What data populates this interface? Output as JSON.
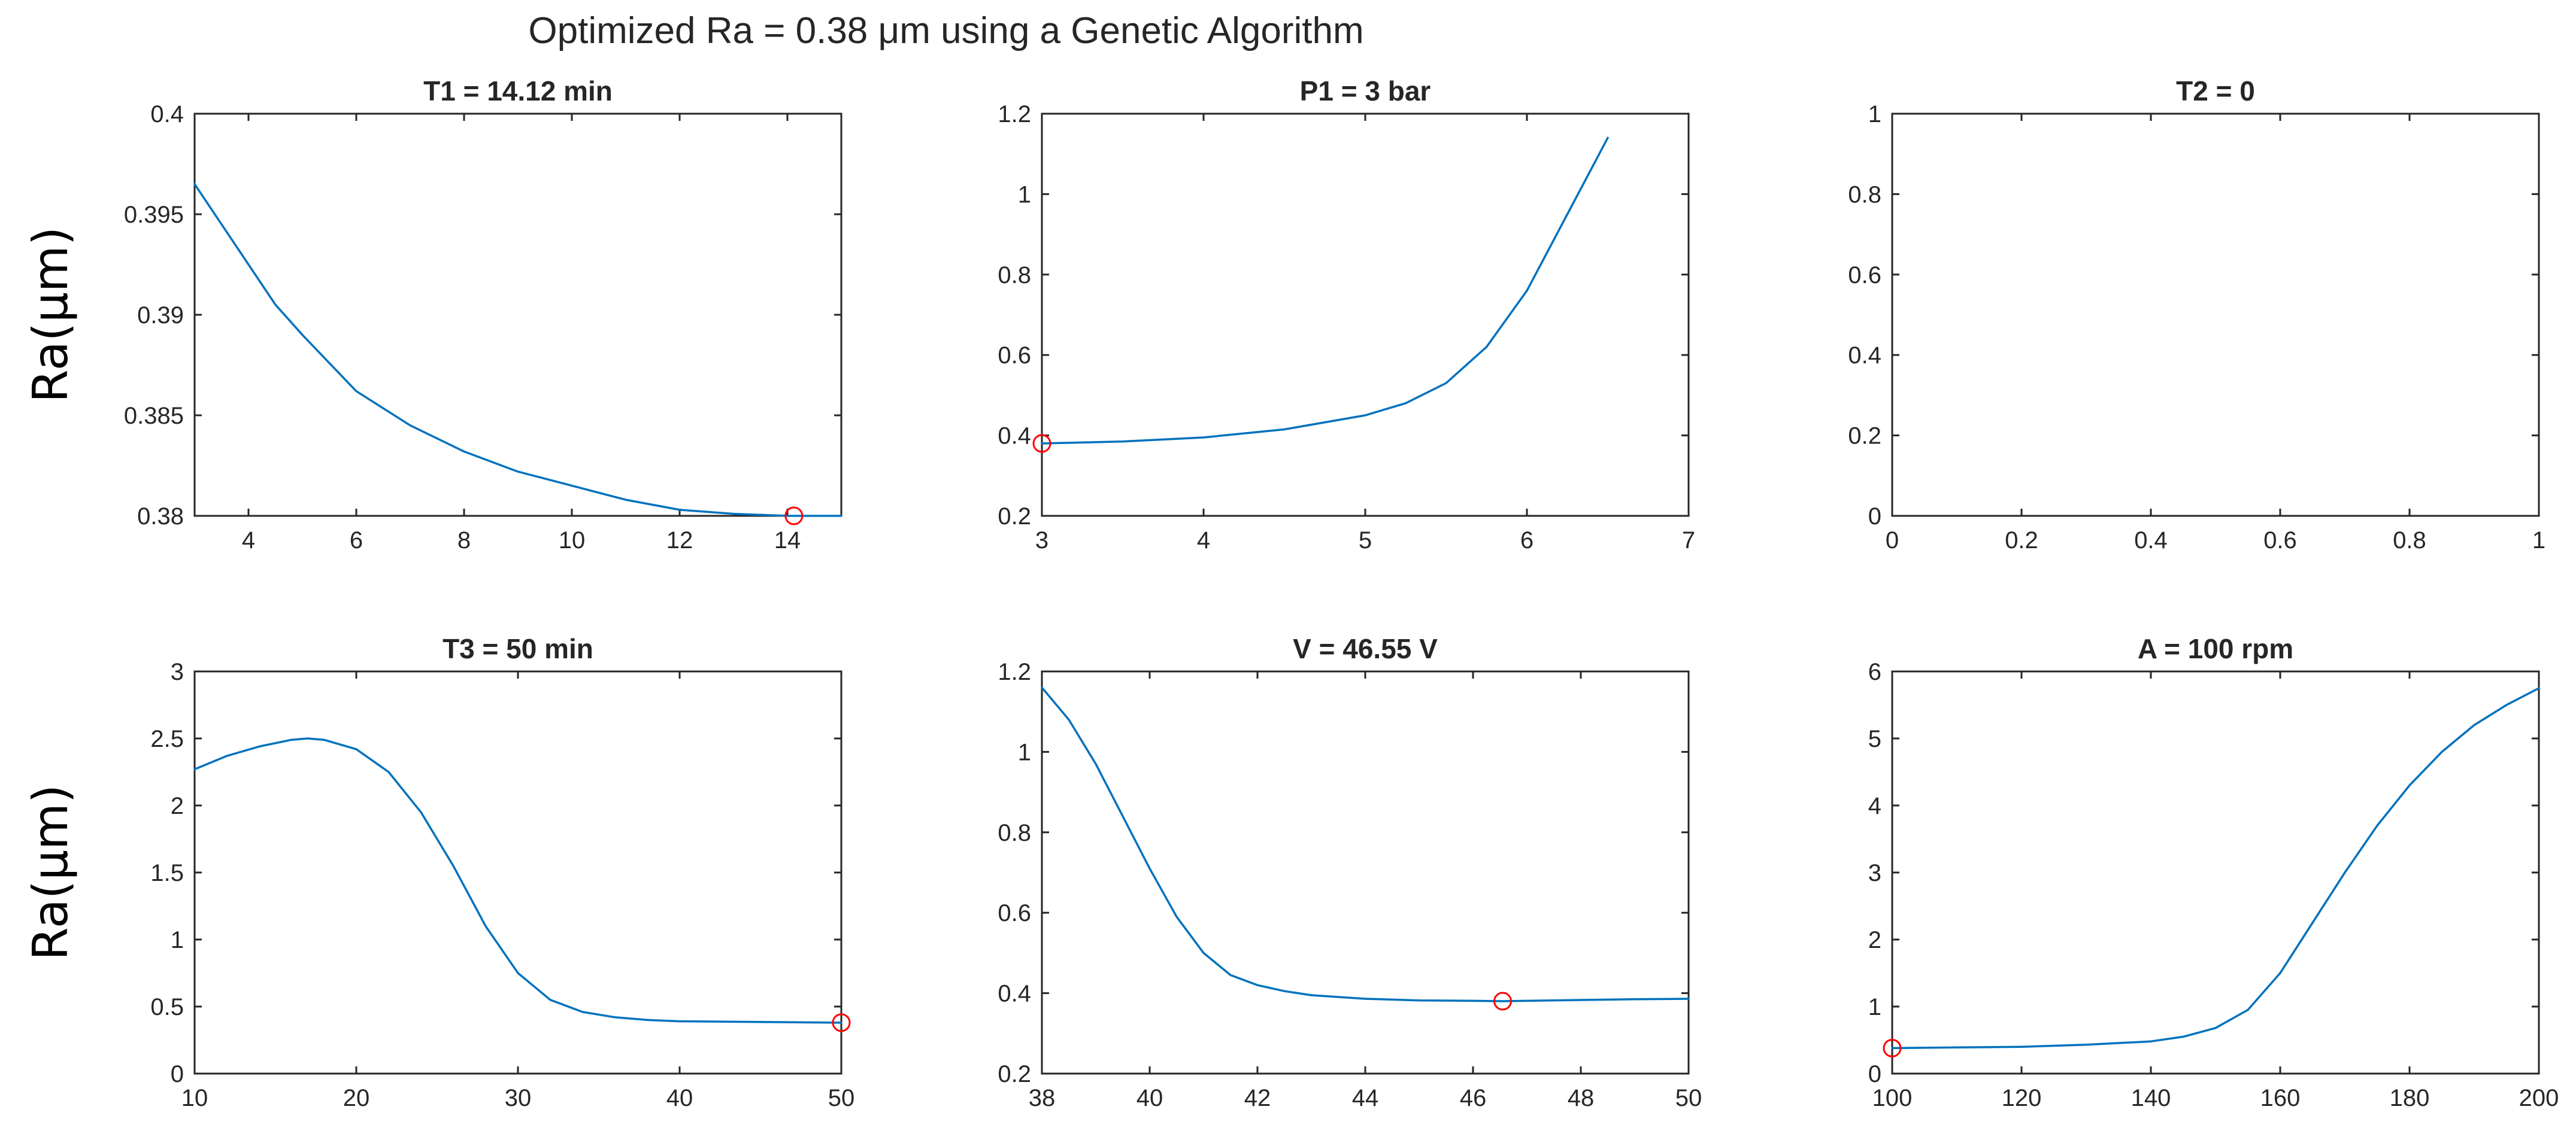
{
  "figure": {
    "title": "Optimized Ra = 0.38 μm using a Genetic Algorithm",
    "row_ylabels": [
      "Ra(μm)",
      "Ra(μm)"
    ]
  },
  "colors": {
    "line": "#0072BD",
    "optimum_marker": "#FF0000",
    "axes": "#262626"
  },
  "chart_data": [
    {
      "type": "line",
      "title": "T1 = 14.12 min",
      "ylabel": "Ra(μm)",
      "xlim": [
        3,
        15
      ],
      "ylim": [
        0.38,
        0.4
      ],
      "xticks": [
        4,
        6,
        8,
        10,
        12,
        14
      ],
      "xtick_labels": [
        "4",
        "6",
        "8",
        "10",
        "12",
        "14"
      ],
      "yticks": [
        0.38,
        0.385,
        0.39,
        0.395,
        0.4
      ],
      "ytick_labels": [
        "0.38",
        "0.385",
        "0.39",
        "0.395",
        "0.4"
      ],
      "x": [
        3,
        3.5,
        4,
        4.5,
        5,
        6,
        7,
        8,
        9,
        10,
        11,
        12,
        13,
        14,
        14.12,
        15
      ],
      "y": [
        0.3965,
        0.3945,
        0.3925,
        0.3905,
        0.389,
        0.3862,
        0.3845,
        0.3832,
        0.3822,
        0.3815,
        0.3808,
        0.3803,
        0.3801,
        0.38,
        0.38,
        0.38
      ],
      "optimum": {
        "x": 14.12,
        "y": 0.38
      }
    },
    {
      "type": "line",
      "title": "P1 = 3 bar",
      "ylabel": "",
      "xlim": [
        3,
        7
      ],
      "ylim": [
        0.2,
        1.2
      ],
      "xticks": [
        3,
        4,
        5,
        6,
        7
      ],
      "xtick_labels": [
        "3",
        "4",
        "5",
        "6",
        "7"
      ],
      "yticks": [
        0.2,
        0.4,
        0.6,
        0.8,
        1.0,
        1.2
      ],
      "ytick_labels": [
        "0.2",
        "0.4",
        "0.6",
        "0.8",
        "1",
        "1.2"
      ],
      "x": [
        3,
        3.5,
        4,
        4.5,
        5,
        5.25,
        5.5,
        5.75,
        6,
        6.25,
        6.5
      ],
      "y": [
        0.38,
        0.385,
        0.395,
        0.415,
        0.45,
        0.48,
        0.53,
        0.62,
        0.76,
        0.95,
        1.14
      ],
      "optimum": {
        "x": 3,
        "y": 0.38
      }
    },
    {
      "type": "line",
      "title": "T2 = 0",
      "ylabel": "",
      "xlim": [
        0,
        1
      ],
      "ylim": [
        0,
        1
      ],
      "xticks": [
        0,
        0.2,
        0.4,
        0.6,
        0.8,
        1
      ],
      "xtick_labels": [
        "0",
        "0.2",
        "0.4",
        "0.6",
        "0.8",
        "1"
      ],
      "yticks": [
        0,
        0.2,
        0.4,
        0.6,
        0.8,
        1
      ],
      "ytick_labels": [
        "0",
        "0.2",
        "0.4",
        "0.6",
        "0.8",
        "1"
      ],
      "x": [],
      "y": []
    },
    {
      "type": "line",
      "title": "T3 = 50 min",
      "ylabel": "Ra(μm)",
      "xlim": [
        10,
        50
      ],
      "ylim": [
        0,
        3
      ],
      "xticks": [
        10,
        20,
        30,
        40,
        50
      ],
      "xtick_labels": [
        "10",
        "20",
        "30",
        "40",
        "50"
      ],
      "yticks": [
        0,
        0.5,
        1,
        1.5,
        2,
        2.5,
        3
      ],
      "ytick_labels": [
        "0",
        "0.5",
        "1",
        "1.5",
        "2",
        "2.5",
        "3"
      ],
      "x": [
        10,
        12,
        14,
        16,
        17,
        18,
        20,
        22,
        24,
        26,
        28,
        30,
        32,
        34,
        36,
        38,
        40,
        45,
        50
      ],
      "y": [
        2.27,
        2.37,
        2.44,
        2.49,
        2.5,
        2.49,
        2.42,
        2.25,
        1.95,
        1.55,
        1.1,
        0.75,
        0.55,
        0.46,
        0.42,
        0.4,
        0.39,
        0.385,
        0.38
      ],
      "optimum": {
        "x": 50,
        "y": 0.38
      }
    },
    {
      "type": "line",
      "title": "V = 46.55 V",
      "ylabel": "",
      "xlim": [
        38,
        50
      ],
      "ylim": [
        0.2,
        1.2
      ],
      "xticks": [
        38,
        40,
        42,
        44,
        46,
        48,
        50
      ],
      "xtick_labels": [
        "38",
        "40",
        "42",
        "44",
        "46",
        "48",
        "50"
      ],
      "yticks": [
        0.2,
        0.4,
        0.6,
        0.8,
        1.0,
        1.2
      ],
      "ytick_labels": [
        "0.2",
        "0.4",
        "0.6",
        "0.8",
        "1",
        "1.2"
      ],
      "x": [
        38,
        38.5,
        39,
        39.5,
        40,
        40.5,
        41,
        41.5,
        42,
        42.5,
        43,
        44,
        45,
        46,
        46.55,
        47,
        48,
        49,
        50
      ],
      "y": [
        1.16,
        1.08,
        0.97,
        0.84,
        0.71,
        0.59,
        0.5,
        0.445,
        0.42,
        0.405,
        0.395,
        0.386,
        0.382,
        0.381,
        0.38,
        0.381,
        0.383,
        0.385,
        0.386
      ],
      "optimum": {
        "x": 46.55,
        "y": 0.38
      }
    },
    {
      "type": "line",
      "title": "A = 100 rpm",
      "ylabel": "",
      "xlim": [
        100,
        200
      ],
      "ylim": [
        0,
        6
      ],
      "xticks": [
        100,
        120,
        140,
        160,
        180,
        200
      ],
      "xtick_labels": [
        "100",
        "120",
        "140",
        "160",
        "180",
        "200"
      ],
      "yticks": [
        0,
        1,
        2,
        3,
        4,
        5,
        6
      ],
      "ytick_labels": [
        "0",
        "1",
        "2",
        "3",
        "4",
        "5",
        "6"
      ],
      "x": [
        100,
        110,
        120,
        130,
        140,
        145,
        150,
        155,
        160,
        165,
        170,
        175,
        180,
        185,
        190,
        195,
        200
      ],
      "y": [
        0.38,
        0.39,
        0.4,
        0.43,
        0.48,
        0.55,
        0.68,
        0.95,
        1.5,
        2.25,
        3.0,
        3.7,
        4.3,
        4.8,
        5.2,
        5.5,
        5.75
      ],
      "optimum": {
        "x": 100,
        "y": 0.38
      }
    }
  ]
}
